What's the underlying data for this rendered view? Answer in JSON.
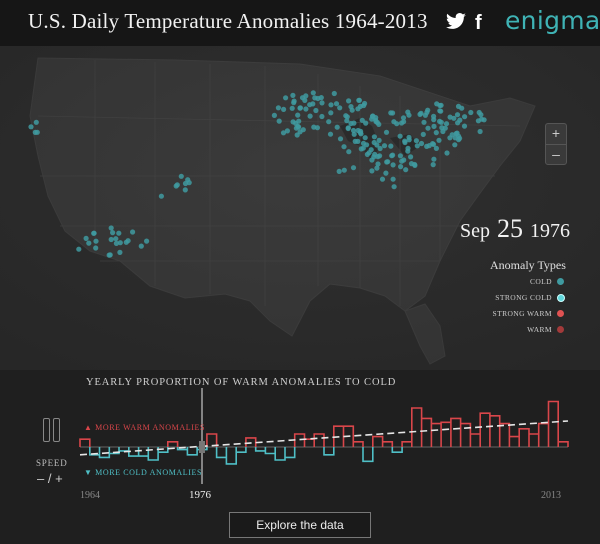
{
  "header": {
    "title": "U.S. Daily Temperature Anomalies 1964-2013",
    "twitter_icon": "twitter-icon",
    "facebook_label": "f",
    "brand": "enigma"
  },
  "map": {
    "zoom_in": "+",
    "zoom_out": "–",
    "date_month": "Sep",
    "date_day": "25",
    "date_year": "1976",
    "legend_title": "Anomaly Types",
    "legend": [
      {
        "label": "COLD",
        "color": "#3f9aa0"
      },
      {
        "label": "STRONG COLD",
        "color": "#5fd6db"
      },
      {
        "label": "STRONG WARM",
        "color": "#e05252"
      },
      {
        "label": "WARM",
        "color": "#a33a3a"
      }
    ]
  },
  "colors": {
    "warm": "#d9464a",
    "cold": "#4fbfc6",
    "cold_dot": "#3f9aa0"
  },
  "controls": {
    "speed_label": "SPEED",
    "speed_control": "– / +"
  },
  "chart_data": {
    "type": "line",
    "title": "YEARLY PROPORTION OF WARM ANOMALIES TO COLD",
    "warm_label": "▲ MORE WARM ANOMALIES",
    "cold_label": "▼ MORE COLD ANOMALIES",
    "x_start_label": "1964",
    "x_current_label": "1976",
    "x_end_label": "2013",
    "x": [
      1964,
      1965,
      1966,
      1967,
      1968,
      1969,
      1970,
      1971,
      1972,
      1973,
      1974,
      1975,
      1976,
      1977,
      1978,
      1979,
      1980,
      1981,
      1982,
      1983,
      1984,
      1985,
      1986,
      1987,
      1988,
      1989,
      1990,
      1991,
      1992,
      1993,
      1994,
      1995,
      1996,
      1997,
      1998,
      1999,
      2000,
      2001,
      2002,
      2003,
      2004,
      2005,
      2006,
      2007,
      2008,
      2009,
      2010,
      2011,
      2012,
      2013
    ],
    "values": [
      0.3,
      -0.3,
      -0.4,
      -0.25,
      -0.15,
      -0.35,
      -0.35,
      -0.5,
      -0.2,
      0.2,
      -0.1,
      -0.3,
      -0.1,
      0.5,
      -0.4,
      -0.65,
      -0.2,
      0.35,
      -0.15,
      -0.25,
      -0.5,
      -0.4,
      0.5,
      0.3,
      0.5,
      -0.3,
      0.8,
      0.8,
      0.2,
      -0.55,
      0.4,
      0.2,
      -0.2,
      0.2,
      1.5,
      1.1,
      0.9,
      0.95,
      1.1,
      0.9,
      0.5,
      1.3,
      1.2,
      0.9,
      0.4,
      0.7,
      0.5,
      0.9,
      1.75,
      0.2
    ],
    "trend_start": -0.3,
    "trend_end": 1.0,
    "current_year": 1976
  },
  "explore_button": "Explore the data"
}
